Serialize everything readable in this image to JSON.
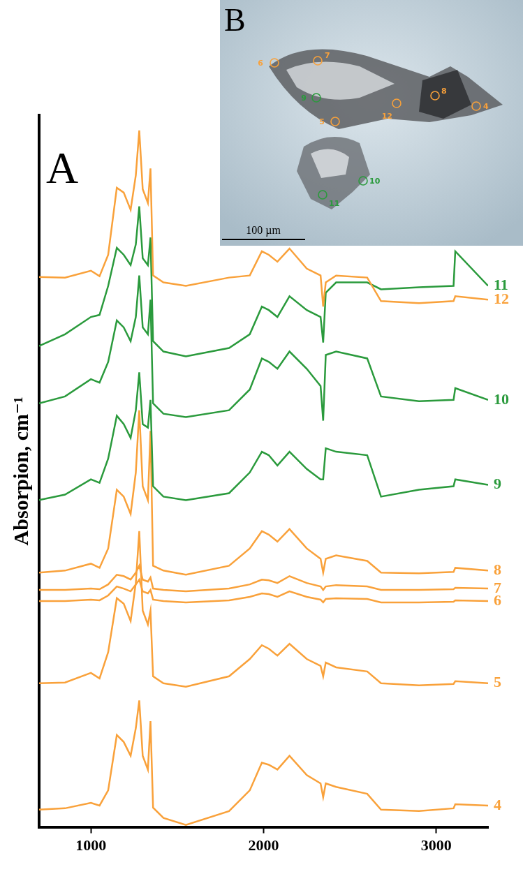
{
  "chart_data": {
    "type": "line",
    "panel_label": "A",
    "y_label": "Absorpion, cm⁻¹",
    "grid": false,
    "tick_labels": "x",
    "x": [
      700,
      850,
      1000,
      1050,
      1100,
      1150,
      1190,
      1230,
      1260,
      1280,
      1300,
      1330,
      1345,
      1360,
      1420,
      1550,
      1800,
      1920,
      1990,
      2030,
      2080,
      2150,
      2250,
      2330,
      2345,
      2360,
      2420,
      2600,
      2680,
      2900,
      3100,
      3110,
      3300
    ],
    "xlim": [
      700,
      3300
    ],
    "xticks": [
      1000,
      2000,
      3000
    ],
    "ylim": [
      0,
      103
    ],
    "yticks": [],
    "series": [
      {
        "name": "12",
        "color": "#f9a13a",
        "values": [
          79.6,
          79.5,
          80.5,
          79.7,
          82.8,
          92.5,
          91.8,
          89.3,
          94.3,
          100.8,
          92.3,
          90.3,
          95.3,
          79.8,
          78.8,
          78.3,
          79.5,
          79.8,
          83.3,
          82.8,
          81.8,
          83.7,
          80.8,
          79.8,
          75.3,
          78.8,
          79.8,
          79.5,
          76.1,
          75.8,
          76.1,
          76.8,
          76.3
        ]
      },
      {
        "name": "11",
        "color": "#2a9a3c",
        "values": [
          69.6,
          71.3,
          73.8,
          74.1,
          78.3,
          83.8,
          82.8,
          81.3,
          84.3,
          89.8,
          82.3,
          81.3,
          85.3,
          70.3,
          68.8,
          68.1,
          69.3,
          71.3,
          75.3,
          74.8,
          73.8,
          76.8,
          74.8,
          73.8,
          70.1,
          77.3,
          78.8,
          78.8,
          77.8,
          78.1,
          78.3,
          83.3,
          78.3
        ]
      },
      {
        "name": "10",
        "color": "#2a9a3c",
        "values": [
          61.3,
          62.3,
          64.8,
          64.3,
          67.3,
          73.3,
          72.3,
          70.3,
          73.8,
          79.8,
          72.3,
          71.3,
          76.3,
          61.3,
          59.8,
          59.3,
          60.3,
          63.3,
          67.8,
          67.3,
          66.3,
          68.8,
          66.3,
          63.8,
          58.8,
          68.3,
          68.8,
          67.8,
          62.3,
          61.6,
          61.8,
          63.5,
          61.8
        ]
      },
      {
        "name": "9",
        "color": "#2a9a3c",
        "values": [
          47.3,
          48.1,
          50.3,
          49.8,
          53.3,
          59.5,
          58.3,
          56.3,
          60.3,
          65.8,
          58.3,
          57.8,
          61.8,
          49.3,
          47.8,
          47.3,
          48.3,
          51.3,
          54.3,
          53.8,
          52.3,
          54.3,
          51.8,
          50.3,
          50.3,
          54.8,
          54.3,
          53.8,
          47.8,
          48.8,
          49.3,
          50.3,
          49.5
        ]
      },
      {
        "name": "8",
        "color": "#f9a13a",
        "values": [
          36.8,
          37.1,
          38.1,
          37.5,
          40.3,
          48.8,
          47.8,
          45.3,
          51.3,
          60.3,
          49.3,
          47.3,
          57.3,
          37.8,
          37.1,
          36.5,
          37.8,
          40.3,
          42.8,
          42.3,
          41.3,
          43.1,
          40.3,
          38.8,
          36.8,
          38.8,
          39.3,
          38.5,
          36.8,
          36.7,
          36.9,
          37.5,
          37.1
        ]
      },
      {
        "name": "7",
        "color": "#f9a13a",
        "values": [
          34.3,
          34.3,
          34.5,
          34.4,
          35.1,
          36.5,
          36.3,
          35.8,
          36.8,
          37.8,
          35.8,
          35.5,
          36.1,
          34.5,
          34.3,
          34.1,
          34.5,
          35.1,
          35.8,
          35.7,
          35.3,
          36.3,
          35.3,
          34.8,
          34.3,
          34.8,
          35.0,
          34.8,
          34.3,
          34.3,
          34.4,
          34.6,
          34.5
        ]
      },
      {
        "name": "6",
        "color": "#f9a13a",
        "values": [
          32.7,
          32.7,
          32.9,
          32.8,
          33.5,
          34.8,
          34.5,
          34.1,
          35.1,
          35.8,
          34.1,
          33.8,
          34.3,
          32.9,
          32.7,
          32.5,
          32.8,
          33.3,
          33.8,
          33.7,
          33.3,
          34.1,
          33.3,
          32.9,
          32.5,
          33.0,
          33.1,
          33.0,
          32.5,
          32.5,
          32.6,
          32.8,
          32.7
        ]
      },
      {
        "name": "5",
        "color": "#f9a13a",
        "values": [
          20.8,
          20.9,
          22.3,
          21.5,
          25.3,
          33.1,
          32.3,
          29.8,
          35.3,
          42.8,
          31.3,
          29.3,
          31.3,
          21.8,
          20.8,
          20.3,
          21.8,
          24.3,
          26.3,
          25.8,
          24.8,
          26.5,
          24.3,
          23.3,
          21.8,
          23.8,
          23.1,
          22.5,
          20.8,
          20.5,
          20.7,
          21.1,
          20.8
        ]
      },
      {
        "name": "4",
        "color": "#f9a13a",
        "values": [
          2.5,
          2.7,
          3.5,
          3.1,
          5.3,
          13.3,
          12.3,
          10.3,
          14.3,
          18.3,
          10.3,
          8.3,
          15.3,
          2.8,
          1.3,
          0.3,
          2.3,
          5.3,
          9.3,
          9.0,
          8.3,
          10.3,
          7.5,
          6.3,
          4.3,
          6.3,
          5.8,
          4.8,
          2.5,
          2.3,
          2.7,
          3.3,
          3.1
        ]
      }
    ]
  },
  "inset": {
    "panel_label": "B",
    "scale_bar": "100 µm",
    "spots": [
      {
        "label": "6",
        "color": "#f9a13a"
      },
      {
        "label": "7",
        "color": "#f9a13a"
      },
      {
        "label": "9",
        "color": "#2a9a3c"
      },
      {
        "label": "5",
        "color": "#f9a13a"
      },
      {
        "label": "12",
        "color": "#f9a13a"
      },
      {
        "label": "8",
        "color": "#f9a13a"
      },
      {
        "label": "4",
        "color": "#f9a13a"
      },
      {
        "label": "10",
        "color": "#2a9a3c"
      },
      {
        "label": "11",
        "color": "#2a9a3c"
      }
    ]
  }
}
